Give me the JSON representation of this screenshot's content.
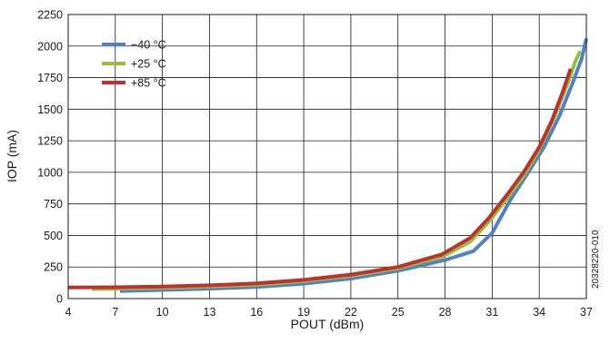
{
  "chart_data": {
    "type": "line",
    "xlabel": "POUT (dBm)",
    "ylabel": "IOP (mA)",
    "xlim": [
      4,
      37
    ],
    "ylim": [
      0,
      2250
    ],
    "xticks": [
      4,
      7,
      10,
      13,
      16,
      19,
      22,
      25,
      28,
      31,
      34,
      37
    ],
    "yticks": [
      0,
      250,
      500,
      750,
      1000,
      1250,
      1500,
      1750,
      2000,
      2250
    ],
    "grid": true,
    "legend_position": "top-left",
    "figure_id": "20328220-010",
    "series": [
      {
        "name": "−40 °C",
        "color": "#4f81c4",
        "x": [
          7.3,
          10,
          13,
          16,
          19,
          22,
          25,
          28,
          29.8,
          31,
          32.2,
          33.3,
          34.3,
          35.3,
          36.1,
          36.7,
          37
        ],
        "y": [
          60,
          68,
          78,
          92,
          118,
          158,
          220,
          305,
          375,
          520,
          790,
          1000,
          1200,
          1450,
          1700,
          1900,
          2060
        ]
      },
      {
        "name": "+25 °C",
        "color": "#95c03f",
        "x": [
          5.5,
          7,
          10,
          13,
          16,
          19,
          22,
          25,
          27.8,
          29.6,
          30.8,
          32,
          33,
          34,
          35,
          35.8,
          36.3,
          36.6
        ],
        "y": [
          75,
          78,
          85,
          95,
          110,
          138,
          180,
          240,
          330,
          450,
          610,
          800,
          970,
          1180,
          1450,
          1700,
          1880,
          1960
        ]
      },
      {
        "name": "+85 °C",
        "color": "#c0312b",
        "x": [
          4,
          7,
          10,
          13,
          16,
          19,
          22,
          25,
          27.8,
          29.6,
          30.8,
          32,
          33,
          34,
          34.8,
          35.5,
          36
        ],
        "y": [
          88,
          90,
          95,
          105,
          120,
          148,
          190,
          250,
          350,
          480,
          640,
          830,
          1000,
          1200,
          1410,
          1640,
          1820
        ]
      }
    ]
  }
}
